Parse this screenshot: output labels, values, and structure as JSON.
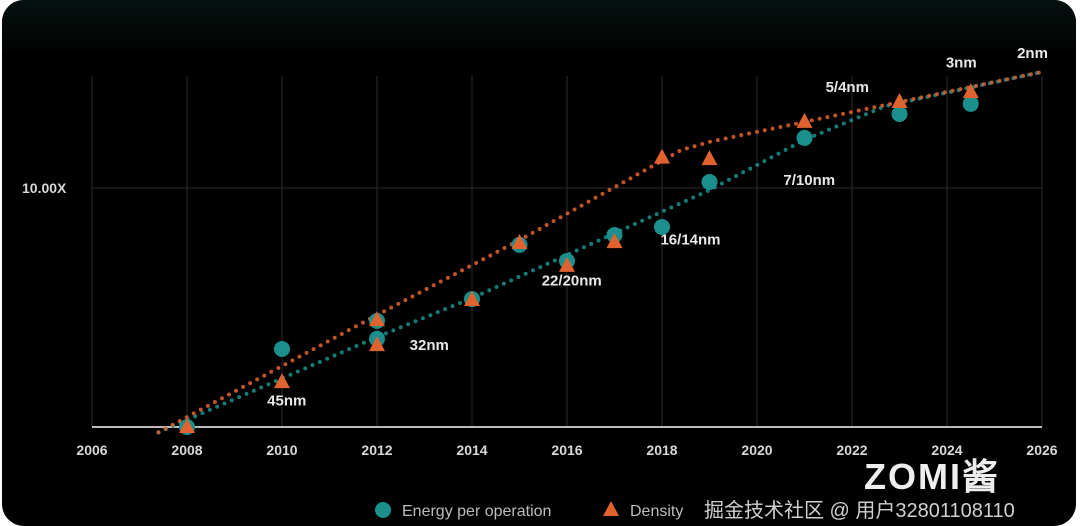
{
  "chart_data": {
    "type": "scatter",
    "title": "",
    "xlabel": "",
    "ylabel": "",
    "y_scale": "log",
    "xlim": [
      2006,
      2026
    ],
    "ylim": [
      1,
      30
    ],
    "x_ticks": [
      "2006",
      "2008",
      "2010",
      "2012",
      "2014",
      "2016",
      "2018",
      "2020",
      "2022",
      "2024",
      "2026"
    ],
    "y_tick_label": "10.00X",
    "y_tick_value": 10,
    "grid": true,
    "legend_position": "bottom-center",
    "series": [
      {
        "name": "Energy per operation",
        "marker": "circle",
        "color": "#1a8f8c",
        "points": [
          [
            2008,
            1.0
          ],
          [
            2010,
            2.12
          ],
          [
            2012,
            2.78
          ],
          [
            2012,
            2.34
          ],
          [
            2014,
            3.43
          ],
          [
            2015,
            5.78
          ],
          [
            2016,
            4.95
          ],
          [
            2017,
            6.36
          ],
          [
            2018,
            6.87
          ],
          [
            2019,
            10.6
          ],
          [
            2021,
            16.2
          ],
          [
            2023,
            20.4
          ],
          [
            2024.5,
            22.5
          ]
        ],
        "trend": [
          [
            2007.4,
            0.95
          ],
          [
            2012,
            2.38
          ],
          [
            2014,
            3.46
          ],
          [
            2019,
            9.8
          ],
          [
            2021,
            15.9
          ],
          [
            2022.7,
            22
          ],
          [
            2026,
            30.6
          ]
        ]
      },
      {
        "name": "Density",
        "marker": "triangle",
        "color": "#e0622f",
        "points": [
          [
            2008,
            1.0
          ],
          [
            2010,
            1.54
          ],
          [
            2012,
            2.8
          ],
          [
            2012,
            2.2
          ],
          [
            2014,
            3.4
          ],
          [
            2015,
            5.89
          ],
          [
            2016,
            4.72
          ],
          [
            2017,
            5.94
          ],
          [
            2018,
            13.4
          ],
          [
            2019,
            13.2
          ],
          [
            2021,
            18.9
          ],
          [
            2023,
            22.9
          ],
          [
            2024.5,
            25.2
          ]
        ],
        "trend": [
          [
            2007.4,
            0.95
          ],
          [
            2012,
            2.94
          ],
          [
            2015,
            6.05
          ],
          [
            2018.4,
            14.4
          ],
          [
            2019,
            15.6
          ],
          [
            2021,
            18.9
          ],
          [
            2023,
            22.9
          ],
          [
            2026,
            30.6
          ]
        ]
      }
    ],
    "annotations": [
      {
        "text": "45nm",
        "x": 2010.1,
        "y": 1.23
      },
      {
        "text": "32nm",
        "x": 2013.1,
        "y": 2.1
      },
      {
        "text": "22/20nm",
        "x": 2016.1,
        "y": 3.9
      },
      {
        "text": "16/14nm",
        "x": 2018.6,
        "y": 5.8
      },
      {
        "text": "7/10nm",
        "x": 2021.1,
        "y": 10.3
      },
      {
        "text": "5/4nm",
        "x": 2021.9,
        "y": 25.2
      },
      {
        "text": "3nm",
        "x": 2024.3,
        "y": 32
      },
      {
        "text": "2nm",
        "x": 2025.8,
        "y": 35
      }
    ]
  },
  "watermark": "掘金技术社区 @ 用户32801108110",
  "logo": "ZOMI酱"
}
